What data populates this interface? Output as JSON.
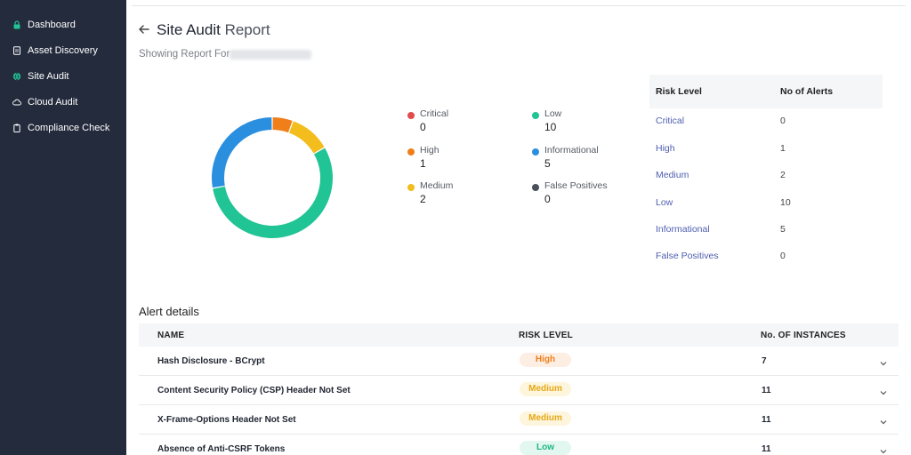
{
  "sidebar": {
    "items": [
      {
        "label": "Dashboard",
        "icon": "lock-icon"
      },
      {
        "label": "Asset Discovery",
        "icon": "document-icon"
      },
      {
        "label": "Site Audit",
        "icon": "globe-icon"
      },
      {
        "label": "Cloud Audit",
        "icon": "cloud-icon"
      },
      {
        "label": "Compliance Check",
        "icon": "clipboard-icon"
      }
    ]
  },
  "header": {
    "title_bold": "Site Audit",
    "title_light": "Report",
    "subtitle": "Showing Report For"
  },
  "chart_data": {
    "type": "pie",
    "style": "donut",
    "categories": [
      "Critical",
      "High",
      "Medium",
      "Low",
      "Informational",
      "False Positives"
    ],
    "values": [
      0,
      1,
      2,
      10,
      5,
      0
    ],
    "colors": [
      "#e24b4b",
      "#f07f1a",
      "#f2bd1d",
      "#20c495",
      "#2b8fe0",
      "#4a4f5c"
    ]
  },
  "legend": [
    {
      "label": "Critical",
      "value": "0",
      "color": "#e24b4b"
    },
    {
      "label": "High",
      "value": "1",
      "color": "#f07f1a"
    },
    {
      "label": "Medium",
      "value": "2",
      "color": "#f2bd1d"
    },
    {
      "label": "Low",
      "value": "10",
      "color": "#20c495"
    },
    {
      "label": "Informational",
      "value": "5",
      "color": "#2b8fe0"
    },
    {
      "label": "False Positives",
      "value": "0",
      "color": "#4a4f5c"
    }
  ],
  "summary": {
    "headers": [
      "Risk Level",
      "No of Alerts"
    ],
    "rows": [
      {
        "risk": "Critical",
        "count": "0"
      },
      {
        "risk": "High",
        "count": "1"
      },
      {
        "risk": "Medium",
        "count": "2"
      },
      {
        "risk": "Low",
        "count": "10"
      },
      {
        "risk": "Informational",
        "count": "5"
      },
      {
        "risk": "False Positives",
        "count": "0"
      }
    ]
  },
  "alerts": {
    "section_title": "Alert details",
    "headers": [
      "NAME",
      "RISK LEVEL",
      "No. OF INSTANCES"
    ],
    "rows": [
      {
        "name": "Hash Disclosure - BCrypt",
        "risk": "High",
        "instances": "7",
        "badge_bg": "#fdeee3",
        "badge_fg": "#f07f1a"
      },
      {
        "name": "Content Security Policy (CSP) Header Not Set",
        "risk": "Medium",
        "instances": "11",
        "badge_bg": "#fdf5dc",
        "badge_fg": "#e6a817"
      },
      {
        "name": "X-Frame-Options Header Not Set",
        "risk": "Medium",
        "instances": "11",
        "badge_bg": "#fdf5dc",
        "badge_fg": "#e6a817"
      },
      {
        "name": "Absence of Anti-CSRF Tokens",
        "risk": "Low",
        "instances": "11",
        "badge_bg": "#e2f7ef",
        "badge_fg": "#20b588"
      }
    ]
  }
}
